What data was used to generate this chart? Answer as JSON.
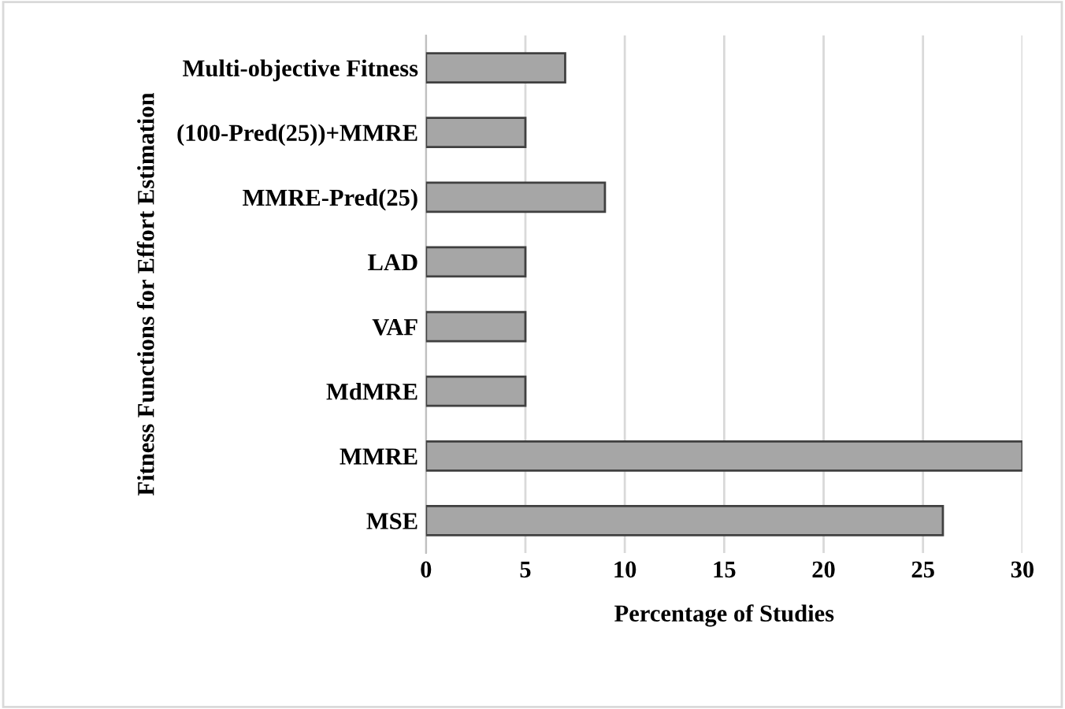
{
  "chart_data": {
    "type": "bar",
    "orientation": "horizontal",
    "xlabel": "Percentage of Studies",
    "ylabel": "Fitness Functions for Effort Estimation",
    "categories": [
      "Multi-objective Fitness",
      "(100-Pred(25))+MMRE",
      "MMRE-Pred(25)",
      "LAD",
      "VAF",
      "MdMRE",
      "MMRE",
      "MSE"
    ],
    "values": [
      7,
      5,
      9,
      5,
      5,
      5,
      30,
      26
    ],
    "color": "#a6a6a6",
    "xlim": [
      0,
      30
    ],
    "xticks": [
      0,
      5,
      10,
      15,
      20,
      25,
      30
    ],
    "grid": "x"
  }
}
